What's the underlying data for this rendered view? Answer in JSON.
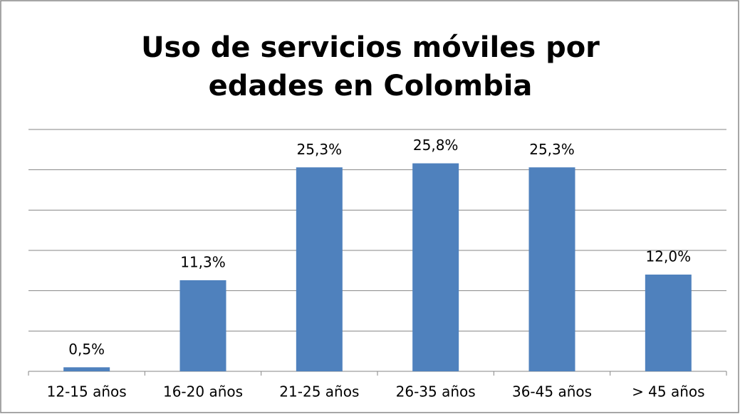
{
  "chart_data": {
    "type": "bar",
    "title": "Uso de servicios móviles por edades en Colombia",
    "categories": [
      "12-15 años",
      "16-20 años",
      "21-25 años",
      "26-35 años",
      "36-45 años",
      "> 45 años"
    ],
    "values": [
      0.5,
      11.3,
      25.3,
      25.8,
      25.3,
      12.0
    ],
    "value_labels": [
      "0,5%",
      "11,3%",
      "25,3%",
      "25,8%",
      "25,3%",
      "12,0%"
    ],
    "color": "#4f81bd",
    "ylim": [
      0,
      30
    ],
    "yticks": [
      0,
      5,
      10,
      15,
      20,
      25,
      30
    ],
    "grid": true
  }
}
